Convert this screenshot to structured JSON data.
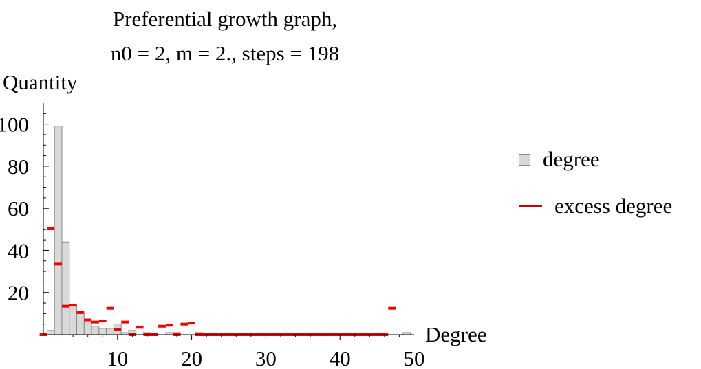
{
  "chart_data": {
    "type": "bar",
    "title": [
      "Preferential growth graph,",
      "n0 = 2, m = 2., steps = 198"
    ],
    "xlabel": "Degree",
    "ylabel": "Quantity",
    "xlim": [
      0,
      50
    ],
    "ylim": [
      0,
      110
    ],
    "x_ticks": [
      10,
      20,
      30,
      40,
      50
    ],
    "y_ticks": [
      20,
      40,
      60,
      80,
      100
    ],
    "legend_position": "right",
    "series": [
      {
        "name": "degree",
        "type": "bar",
        "color": "#d9d9d9",
        "points": [
          {
            "x": 1,
            "y": 2
          },
          {
            "x": 2,
            "y": 99
          },
          {
            "x": 3,
            "y": 44
          },
          {
            "x": 4,
            "y": 14
          },
          {
            "x": 5,
            "y": 10
          },
          {
            "x": 6,
            "y": 6
          },
          {
            "x": 7,
            "y": 4
          },
          {
            "x": 8,
            "y": 3
          },
          {
            "x": 9,
            "y": 3
          },
          {
            "x": 10,
            "y": 5
          },
          {
            "x": 11,
            "y": 1
          },
          {
            "x": 12,
            "y": 2
          },
          {
            "x": 14,
            "y": 1
          },
          {
            "x": 17,
            "y": 1
          },
          {
            "x": 18,
            "y": 1
          },
          {
            "x": 21,
            "y": 1
          },
          {
            "x": 49,
            "y": 1
          }
        ]
      },
      {
        "name": "excess degree",
        "type": "step-marker",
        "color": "#ee0000",
        "points": [
          {
            "x": 0,
            "y": 0
          },
          {
            "x": 1,
            "y": 50.5
          },
          {
            "x": 2,
            "y": 33.5
          },
          {
            "x": 3,
            "y": 13.5
          },
          {
            "x": 4,
            "y": 14
          },
          {
            "x": 5,
            "y": 10.5
          },
          {
            "x": 6,
            "y": 7
          },
          {
            "x": 7,
            "y": 6
          },
          {
            "x": 8,
            "y": 6.5
          },
          {
            "x": 9,
            "y": 12.5
          },
          {
            "x": 10,
            "y": 2.5
          },
          {
            "x": 11,
            "y": 6
          },
          {
            "x": 12,
            "y": 0
          },
          {
            "x": 13,
            "y": 3.5
          },
          {
            "x": 14,
            "y": 0
          },
          {
            "x": 15,
            "y": 0
          },
          {
            "x": 16,
            "y": 4
          },
          {
            "x": 17,
            "y": 4.5
          },
          {
            "x": 18,
            "y": 0
          },
          {
            "x": 19,
            "y": 5
          },
          {
            "x": 20,
            "y": 5.5
          },
          {
            "x": 47,
            "y": 12.5
          }
        ],
        "zero_span": [
          21,
          47
        ]
      }
    ]
  }
}
